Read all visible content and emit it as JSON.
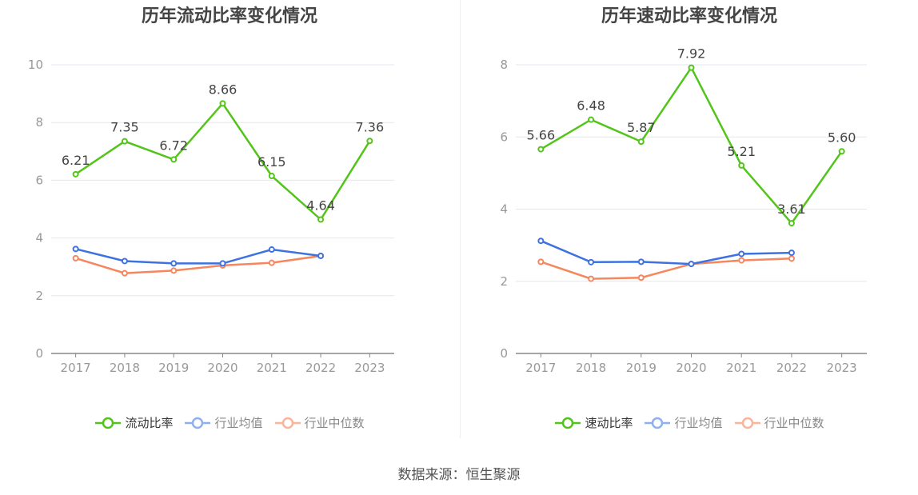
{
  "source": "数据来源：恒生聚源",
  "colors": {
    "primary": "#52c41a",
    "avg": "#3d72e0",
    "median": "#f5865e",
    "grid": "#e4e7f0",
    "axis": "#888888"
  },
  "chart_data": [
    {
      "type": "line",
      "title": "历年流动比率变化情况",
      "categories": [
        "2017",
        "2018",
        "2019",
        "2020",
        "2021",
        "2022",
        "2023"
      ],
      "ylim": [
        0,
        10
      ],
      "yticks": [
        0,
        2,
        4,
        6,
        8,
        10
      ],
      "grid": true,
      "legend_position": "bottom",
      "series": [
        {
          "name": "流动比率",
          "values": [
            6.21,
            7.35,
            6.72,
            8.66,
            6.15,
            4.64,
            7.36
          ],
          "labels": [
            "6.21",
            "7.35",
            "6.72",
            "8.66",
            "6.15",
            "4.64",
            "7.36"
          ]
        },
        {
          "name": "行业均值",
          "values": [
            3.62,
            3.2,
            3.12,
            3.12,
            3.6,
            3.38,
            null
          ]
        },
        {
          "name": "行业中位数",
          "values": [
            3.3,
            2.78,
            2.87,
            3.05,
            3.14,
            3.38,
            null
          ]
        }
      ]
    },
    {
      "type": "line",
      "title": "历年速动比率变化情况",
      "categories": [
        "2017",
        "2018",
        "2019",
        "2020",
        "2021",
        "2022",
        "2023"
      ],
      "ylim": [
        0,
        8
      ],
      "yticks": [
        0,
        2,
        4,
        6,
        8
      ],
      "grid": true,
      "legend_position": "bottom",
      "series": [
        {
          "name": "速动比率",
          "values": [
            5.66,
            6.48,
            5.87,
            7.92,
            5.21,
            3.61,
            5.6
          ],
          "labels": [
            "5.66",
            "6.48",
            "5.87",
            "7.92",
            "5.21",
            "3.61",
            "5.60"
          ]
        },
        {
          "name": "行业均值",
          "values": [
            3.12,
            2.53,
            2.54,
            2.48,
            2.76,
            2.79,
            null
          ]
        },
        {
          "name": "行业中位数",
          "values": [
            2.54,
            2.07,
            2.1,
            2.48,
            2.58,
            2.63,
            null
          ]
        }
      ]
    }
  ]
}
